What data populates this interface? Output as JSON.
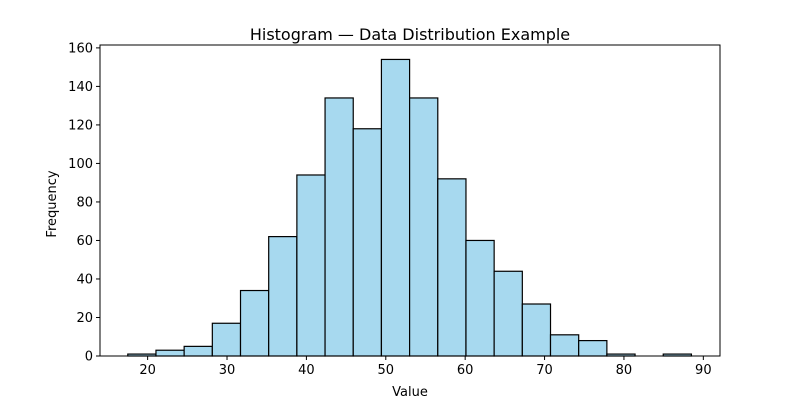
{
  "chart_data": {
    "type": "bar",
    "subtype": "histogram",
    "title": "Histogram — Data Distribution Example",
    "xlabel": "Value",
    "ylabel": "Frequency",
    "bin_edges": [
      17.5,
      21.05,
      24.6,
      28.15,
      31.7,
      35.25,
      38.8,
      42.35,
      45.9,
      49.45,
      53.0,
      56.55,
      60.1,
      63.65,
      67.2,
      70.75,
      74.3,
      77.85,
      81.4,
      84.95,
      88.5
    ],
    "values": [
      1,
      3,
      5,
      17,
      34,
      62,
      94,
      134,
      118,
      154,
      134,
      92,
      60,
      44,
      27,
      11,
      8,
      1,
      0,
      1
    ],
    "xlim": [
      14,
      92.1
    ],
    "ylim": [
      0,
      161.5
    ],
    "xticks": [
      20,
      30,
      40,
      50,
      60,
      70,
      80,
      90
    ],
    "yticks": [
      0,
      20,
      40,
      60,
      80,
      100,
      120,
      140,
      160
    ],
    "grid": false,
    "legend": null,
    "bar_color": "#A7D9EF",
    "edge_color": "#000000"
  }
}
